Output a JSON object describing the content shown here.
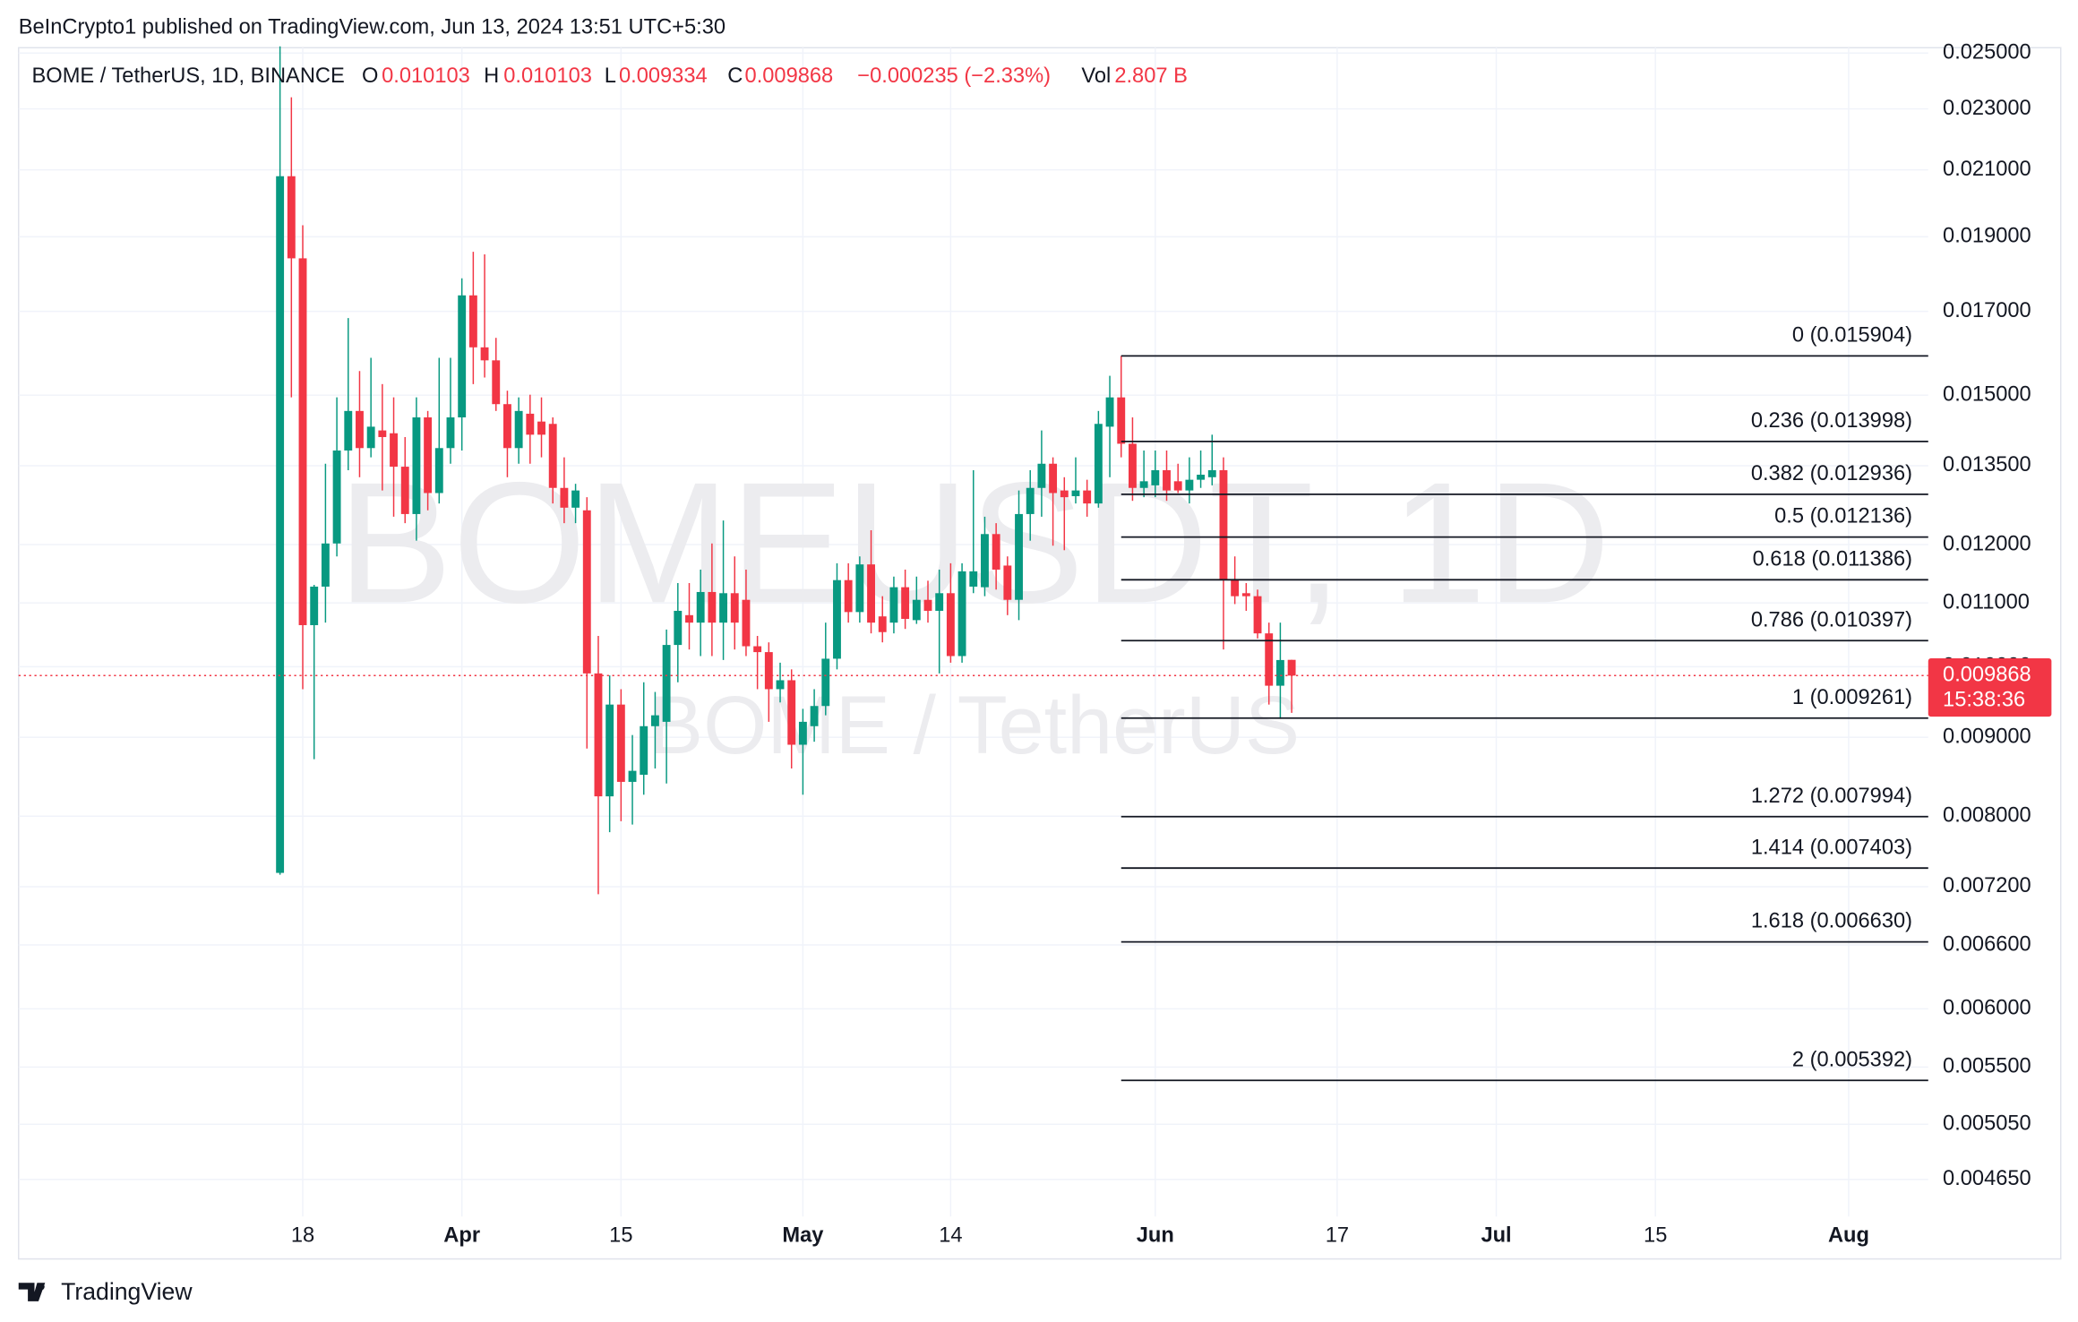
{
  "chart_data": {
    "type": "candlestick",
    "published": "BeInCrypto1 published on TradingView.com, Jun 13, 2024 13:51 UTC+5:30",
    "title": "BOME / TetherUS, 1D, BINANCE",
    "legend": {
      "open_key": "O",
      "high_key": "H",
      "low_key": "L",
      "close_key": "C",
      "change": "−0.000235 (−2.33%)",
      "volume_key": "Vol",
      "volume": "2.807 B"
    },
    "watermark": {
      "symbol": "BOMEUSDT, 1D",
      "name": "BOME / TetherUS"
    },
    "countdown": "15:38:36",
    "brand": "TradingView",
    "up_color": "#089981",
    "down_color": "#f23645",
    "log_scale": true,
    "grid": true,
    "xlim": [
      "2024-02-22",
      "2024-08-08"
    ],
    "ylim": [
      0.0044,
      0.0252
    ],
    "xticks": [
      {
        "value": "2024-03-18",
        "label": "18"
      },
      {
        "value": "2024-04-01",
        "label": "Apr"
      },
      {
        "value": "2024-04-15",
        "label": "15"
      },
      {
        "value": "2024-05-01",
        "label": "May"
      },
      {
        "value": "2024-05-14",
        "label": "14"
      },
      {
        "value": "2024-06-01",
        "label": "Jun"
      },
      {
        "value": "2024-06-17",
        "label": "17"
      },
      {
        "value": "2024-07-01",
        "label": "Jul"
      },
      {
        "value": "2024-07-15",
        "label": "15"
      },
      {
        "value": "2024-08-01",
        "label": "Aug"
      }
    ],
    "yticks": [
      {
        "value": 0.025,
        "label": "0.025000"
      },
      {
        "value": 0.023,
        "label": "0.023000"
      },
      {
        "value": 0.021,
        "label": "0.021000"
      },
      {
        "value": 0.019,
        "label": "0.019000"
      },
      {
        "value": 0.017,
        "label": "0.017000"
      },
      {
        "value": 0.015,
        "label": "0.015000"
      },
      {
        "value": 0.0135,
        "label": "0.013500"
      },
      {
        "value": 0.012,
        "label": "0.012000"
      },
      {
        "value": 0.011,
        "label": "0.011000"
      },
      {
        "value": 0.01,
        "label": "0.010000"
      },
      {
        "value": 0.009,
        "label": "0.009000"
      },
      {
        "value": 0.008,
        "label": "0.008000"
      },
      {
        "value": 0.0072,
        "label": "0.007200"
      },
      {
        "value": 0.0066,
        "label": "0.006600"
      },
      {
        "value": 0.006,
        "label": "0.006000"
      },
      {
        "value": 0.0055,
        "label": "0.005500"
      },
      {
        "value": 0.00505,
        "label": "0.005050"
      },
      {
        "value": 0.00465,
        "label": "0.004650"
      }
    ],
    "x": [
      "2024-03-16",
      "2024-03-17",
      "2024-03-18",
      "2024-03-19",
      "2024-03-20",
      "2024-03-21",
      "2024-03-22",
      "2024-03-23",
      "2024-03-24",
      "2024-03-25",
      "2024-03-26",
      "2024-03-27",
      "2024-03-28",
      "2024-03-29",
      "2024-03-30",
      "2024-03-31",
      "2024-04-01",
      "2024-04-02",
      "2024-04-03",
      "2024-04-04",
      "2024-04-05",
      "2024-04-06",
      "2024-04-07",
      "2024-04-08",
      "2024-04-09",
      "2024-04-10",
      "2024-04-11",
      "2024-04-12",
      "2024-04-13",
      "2024-04-14",
      "2024-04-15",
      "2024-04-16",
      "2024-04-17",
      "2024-04-18",
      "2024-04-19",
      "2024-04-20",
      "2024-04-21",
      "2024-04-22",
      "2024-04-23",
      "2024-04-24",
      "2024-04-25",
      "2024-04-26",
      "2024-04-27",
      "2024-04-28",
      "2024-04-29",
      "2024-04-30",
      "2024-05-01",
      "2024-05-02",
      "2024-05-03",
      "2024-05-04",
      "2024-05-05",
      "2024-05-06",
      "2024-05-07",
      "2024-05-08",
      "2024-05-09",
      "2024-05-10",
      "2024-05-11",
      "2024-05-12",
      "2024-05-13",
      "2024-05-14",
      "2024-05-15",
      "2024-05-16",
      "2024-05-17",
      "2024-05-18",
      "2024-05-19",
      "2024-05-20",
      "2024-05-21",
      "2024-05-22",
      "2024-05-23",
      "2024-05-24",
      "2024-05-25",
      "2024-05-26",
      "2024-05-27",
      "2024-05-28",
      "2024-05-29",
      "2024-05-30",
      "2024-05-31",
      "2024-06-01",
      "2024-06-02",
      "2024-06-03",
      "2024-06-04",
      "2024-06-05",
      "2024-06-06",
      "2024-06-07",
      "2024-06-08",
      "2024-06-09",
      "2024-06-10",
      "2024-06-11",
      "2024-06-12",
      "2024-06-13"
    ],
    "open": [
      0.00735,
      0.0208,
      0.0184,
      0.01064,
      0.01127,
      0.01202,
      0.01381,
      0.01465,
      0.01386,
      0.01423,
      0.01417,
      0.01348,
      0.01256,
      0.01451,
      0.01296,
      0.01386,
      0.01451,
      0.01741,
      0.01611,
      0.0158,
      0.0148,
      0.01386,
      0.01459,
      0.01442,
      0.01437,
      0.01306,
      0.01268,
      0.01263,
      0.0099,
      0.00824,
      0.00945,
      0.00842,
      0.00851,
      0.00915,
      0.00921,
      0.01033,
      0.0108,
      0.01068,
      0.01118,
      0.01068,
      0.01116,
      0.01105,
      0.01031,
      0.01022,
      0.00967,
      0.0098,
      0.0089,
      0.00915,
      0.00943,
      0.01012,
      0.01138,
      0.01085,
      0.01165,
      0.01078,
      0.01068,
      0.01126,
      0.01072,
      0.01105,
      0.01087,
      0.01116,
      0.01016,
      0.01127,
      0.01126,
      0.01219,
      0.01163,
      0.01105,
      0.01256,
      0.01306,
      0.01354,
      0.01301,
      0.0129,
      0.01301,
      0.01276,
      0.01431,
      0.01495,
      0.01395,
      0.01306,
      0.01311,
      0.01341,
      0.01319,
      0.01301,
      0.01322,
      0.01327,
      0.01341,
      0.01138,
      0.01116,
      0.01111,
      0.01051,
      0.00972,
      0.010103
    ],
    "high": [
      0.02525,
      0.0234,
      0.01933,
      0.0113,
      0.01354,
      0.01495,
      0.01683,
      0.01555,
      0.01586,
      0.01525,
      0.01495,
      0.01409,
      0.01495,
      0.01465,
      0.01586,
      0.01586,
      0.01786,
      0.01858,
      0.01851,
      0.01634,
      0.0151,
      0.01495,
      0.01501,
      0.01495,
      0.01451,
      0.01367,
      0.01314,
      0.01288,
      0.01047,
      0.00987,
      0.00967,
      0.00903,
      0.00977,
      0.00963,
      0.01057,
      0.01133,
      0.01133,
      0.01156,
      0.01202,
      0.01244,
      0.01179,
      0.01156,
      0.01047,
      0.01037,
      0.01006,
      0.00996,
      0.00939,
      0.00967,
      0.01068,
      0.01167,
      0.01167,
      0.01179,
      0.01226,
      0.01111,
      0.01144,
      0.01156,
      0.01144,
      0.01137,
      0.01156,
      0.01167,
      0.01167,
      0.01341,
      0.01251,
      0.01239,
      0.01179,
      0.01301,
      0.01341,
      0.01423,
      0.01367,
      0.01327,
      0.01367,
      0.01322,
      0.01465,
      0.01544,
      0.015904,
      0.01451,
      0.01381,
      0.01381,
      0.01381,
      0.01354,
      0.01367,
      0.01381,
      0.01414,
      0.01367,
      0.01179,
      0.01133,
      0.01122,
      0.01068,
      0.01068,
      0.010103
    ],
    "low": [
      0.00733,
      0.01495,
      0.00967,
      0.00871,
      0.01068,
      0.01179,
      0.01341,
      0.01327,
      0.01367,
      0.01301,
      0.01251,
      0.01239,
      0.01207,
      0.01263,
      0.01276,
      0.01354,
      0.01381,
      0.01525,
      0.0154,
      0.01465,
      0.01327,
      0.01354,
      0.01354,
      0.01367,
      0.01276,
      0.01239,
      0.01239,
      0.00885,
      0.00712,
      0.00781,
      0.00794,
      0.0079,
      0.00826,
      0.00859,
      0.0084,
      0.00977,
      0.01026,
      0.01016,
      0.01016,
      0.0101,
      0.01026,
      0.01016,
      0.00967,
      0.00921,
      0.00948,
      0.00859,
      0.00826,
      0.00894,
      0.0093,
      0.00996,
      0.01068,
      0.01068,
      0.01051,
      0.01037,
      0.01051,
      0.01058,
      0.01066,
      0.01068,
      0.0099,
      0.01006,
      0.01006,
      0.01116,
      0.01111,
      0.01122,
      0.0108,
      0.01072,
      0.01207,
      0.01251,
      0.01198,
      0.0119,
      0.01276,
      0.01251,
      0.01268,
      0.01327,
      0.01367,
      0.01281,
      0.01288,
      0.01288,
      0.01281,
      0.01296,
      0.01276,
      0.01306,
      0.01311,
      0.01026,
      0.01098,
      0.01087,
      0.01043,
      0.00945,
      0.00925,
      0.009334
    ],
    "close": [
      0.0208,
      0.0184,
      0.01064,
      0.01127,
      0.01202,
      0.01381,
      0.01465,
      0.01386,
      0.01431,
      0.01409,
      0.01348,
      0.01256,
      0.01451,
      0.01296,
      0.01386,
      0.01451,
      0.01741,
      0.01611,
      0.0158,
      0.0148,
      0.01386,
      0.01465,
      0.01414,
      0.01414,
      0.01306,
      0.01268,
      0.01301,
      0.0099,
      0.00824,
      0.00945,
      0.00842,
      0.00856,
      0.00915,
      0.0093,
      0.01033,
      0.01087,
      0.01068,
      0.01118,
      0.01068,
      0.01116,
      0.01068,
      0.01031,
      0.01022,
      0.00967,
      0.0098,
      0.0089,
      0.00921,
      0.00943,
      0.01012,
      0.01138,
      0.01085,
      0.01165,
      0.01068,
      0.01053,
      0.01126,
      0.01074,
      0.01105,
      0.01087,
      0.01116,
      0.01016,
      0.01153,
      0.01153,
      0.01219,
      0.01156,
      0.01105,
      0.01256,
      0.01306,
      0.01354,
      0.01296,
      0.01288,
      0.01301,
      0.01276,
      0.01437,
      0.01495,
      0.01395,
      0.01306,
      0.01319,
      0.01341,
      0.01301,
      0.01301,
      0.01322,
      0.01332,
      0.01341,
      0.01138,
      0.01111,
      0.01111,
      0.01051,
      0.00972,
      0.0101,
      0.009868
    ],
    "fib": {
      "from": "2024-05-29",
      "color": "#131722",
      "levels": [
        {
          "value": 0.015904,
          "label": "0 (0.015904)"
        },
        {
          "value": 0.013998,
          "label": "0.236 (0.013998)"
        },
        {
          "value": 0.012936,
          "label": "0.382 (0.012936)"
        },
        {
          "value": 0.012136,
          "label": "0.5 (0.012136)"
        },
        {
          "value": 0.011386,
          "label": "0.618 (0.011386)"
        },
        {
          "value": 0.010397,
          "label": "0.786 (0.010397)"
        },
        {
          "value": 0.009261,
          "label": "1 (0.009261)"
        },
        {
          "value": 0.007994,
          "label": "1.272 (0.007994)"
        },
        {
          "value": 0.007403,
          "label": "1.414 (0.007403)"
        },
        {
          "value": 0.00663,
          "label": "1.618 (0.006630)"
        },
        {
          "value": 0.005392,
          "label": "2 (0.005392)"
        }
      ]
    }
  }
}
